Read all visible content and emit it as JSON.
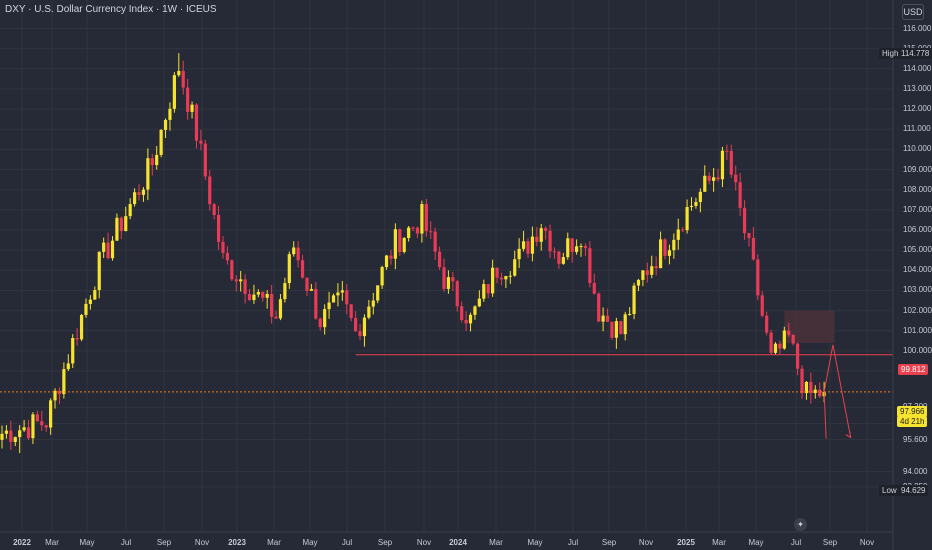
{
  "header": {
    "title": "DXY · U.S. Dollar Currency Index · 1W · ICEUS",
    "currency": "USD"
  },
  "labels": {
    "high_tag": "High",
    "high_value": "114.778",
    "low_tag": "Low",
    "low_value": "94.629",
    "level_value": "99.812",
    "price_value": "97.966",
    "countdown": "4d 21h"
  },
  "colors": {
    "background": "#262a36",
    "up": "#f6e32d",
    "down": "#ea3a57",
    "level_line": "#e8404f",
    "price_line": "#f07a1e",
    "zone": "#4b3139",
    "grid": "#30343f",
    "axis_text": "#c7cad3"
  },
  "chart_data": {
    "type": "candlestick",
    "title": "DXY · U.S. Dollar Currency Index · 1W · ICEUS",
    "ylim": [
      93.0,
      116.8
    ],
    "y_ticks": [
      "93.250",
      "94.000",
      "95.600",
      "96.400",
      "97.200",
      "99.000",
      "100.000",
      "101.000",
      "102.000",
      "103.000",
      "104.000",
      "105.000",
      "106.000",
      "107.000",
      "108.000",
      "109.000",
      "110.000",
      "111.000",
      "112.000",
      "113.000",
      "114.000",
      "115.000",
      "116.000"
    ],
    "x_ticks": [
      "2022",
      "Mar",
      "May",
      "Jul",
      "Sep",
      "Nov",
      "2023",
      "Mar",
      "May",
      "Jul",
      "Sep",
      "Nov",
      "2024",
      "Mar",
      "May",
      "Jul",
      "Sep",
      "Nov",
      "2025",
      "Mar",
      "May",
      "Jul",
      "Sep",
      "Nov"
    ],
    "candle_count": 187,
    "anchors": [
      [
        0,
        95.9
      ],
      [
        10,
        96.5
      ],
      [
        22,
        104.3
      ],
      [
        34,
        109.3
      ],
      [
        40,
        114.1
      ],
      [
        44,
        110.8
      ],
      [
        50,
        104.5
      ],
      [
        55,
        103.4
      ],
      [
        62,
        101.7
      ],
      [
        66,
        105.2
      ],
      [
        72,
        101.5
      ],
      [
        77,
        102.5
      ],
      [
        80,
        100.9
      ],
      [
        89,
        105.4
      ],
      [
        95,
        106.6
      ],
      [
        100,
        103.6
      ],
      [
        106,
        101.5
      ],
      [
        112,
        104.1
      ],
      [
        117,
        104.6
      ],
      [
        122,
        106.4
      ],
      [
        126,
        104.7
      ],
      [
        131,
        105.9
      ],
      [
        135,
        102.0
      ],
      [
        140,
        100.9
      ],
      [
        145,
        103.8
      ],
      [
        151,
        105.6
      ],
      [
        155,
        107.0
      ],
      [
        160,
        108.4
      ],
      [
        164,
        109.7
      ],
      [
        170,
        104.0
      ],
      [
        174,
        99.5
      ],
      [
        178,
        100.6
      ],
      [
        182,
        97.8
      ],
      [
        185,
        97.9
      ],
      [
        186,
        97.966
      ]
    ],
    "high": 114.778,
    "low": 94.629,
    "level": 99.812,
    "last_price": 97.966,
    "zone": {
      "x_from_index": 177,
      "x_to_index": 182,
      "y_from": 100.4,
      "y_to": 102.0
    },
    "projection": [
      [
        186,
        97.966
      ],
      [
        188,
        100.3
      ],
      [
        192,
        95.7
      ]
    ]
  }
}
